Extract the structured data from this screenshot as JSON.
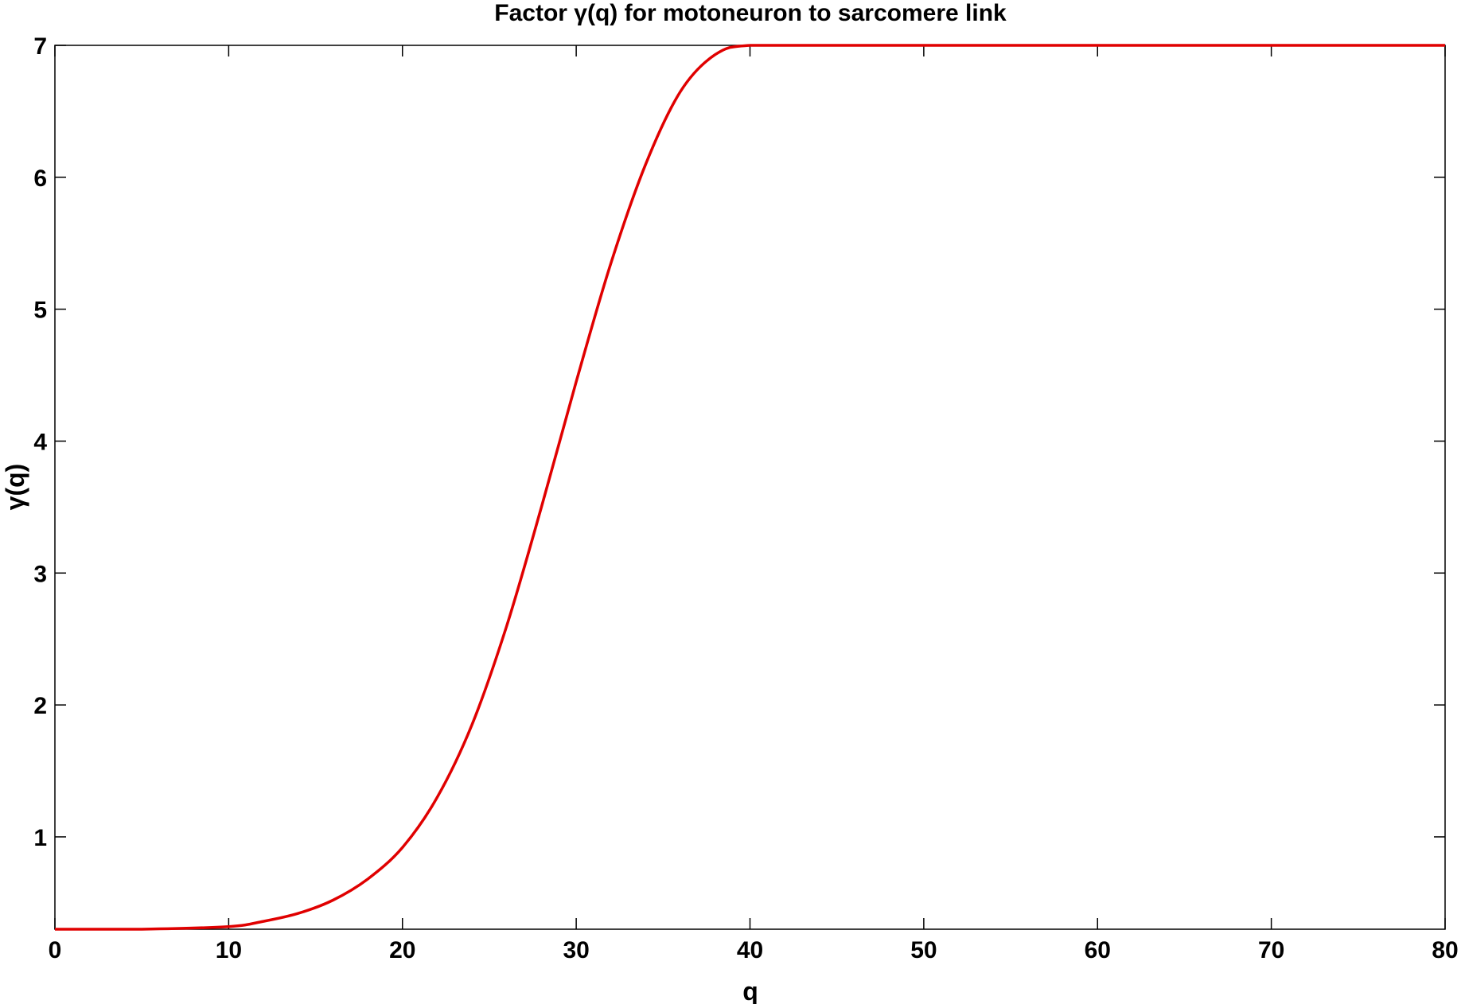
{
  "chart_data": {
    "type": "line",
    "title": "Factor γ(q) for motoneuron to sarcomere link",
    "xlabel": "q",
    "ylabel": "γ(q)",
    "xlim": [
      0,
      80
    ],
    "ylim": [
      0.3,
      7
    ],
    "xticks": [
      0,
      10,
      20,
      30,
      40,
      50,
      60,
      70,
      80
    ],
    "yticks": [
      1,
      2,
      3,
      4,
      5,
      6,
      7
    ],
    "grid": false,
    "legend": "none",
    "series": [
      {
        "color": "#e00000",
        "x": [
          0,
          5,
          10,
          12,
          14,
          16,
          18,
          20,
          22,
          24,
          26,
          28,
          30,
          32,
          34,
          36,
          38,
          40,
          45,
          50,
          60,
          70,
          80
        ],
        "y": [
          0.3,
          0.3,
          0.32,
          0.36,
          0.42,
          0.52,
          0.68,
          0.92,
          1.3,
          1.85,
          2.6,
          3.5,
          4.45,
          5.35,
          6.1,
          6.65,
          6.93,
          7.0,
          7.0,
          7.0,
          7.0,
          7.0,
          7.0
        ]
      }
    ]
  }
}
